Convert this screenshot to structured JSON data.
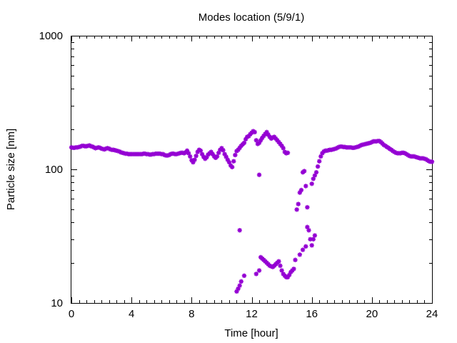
{
  "chart_data": {
    "type": "scatter",
    "title": "Modes location (5/9/1)",
    "xlabel": "Time [hour]",
    "ylabel": "Particle size [nm]",
    "xlim": [
      0,
      24
    ],
    "ylim": [
      10,
      1000
    ],
    "yscale": "log",
    "grid": false,
    "legend": "none",
    "marker_color": "#9400d3",
    "x_ticks": [
      0,
      4,
      8,
      12,
      16,
      20,
      24
    ],
    "x_tick_labels": [
      "0",
      "4",
      "8",
      "12",
      "16",
      "20",
      "24"
    ],
    "y_ticks": [
      10,
      100,
      1000
    ],
    "y_tick_labels": [
      "10",
      "100",
      "1000"
    ],
    "series": [
      {
        "points": [
          [
            0.0,
            146
          ],
          [
            0.1,
            145
          ],
          [
            0.2,
            145
          ],
          [
            0.3,
            146
          ],
          [
            0.4,
            146
          ],
          [
            0.5,
            147
          ],
          [
            0.6,
            148
          ],
          [
            0.7,
            150
          ],
          [
            0.8,
            150
          ],
          [
            0.9,
            149
          ],
          [
            1.0,
            149
          ],
          [
            1.1,
            150
          ],
          [
            1.2,
            151
          ],
          [
            1.3,
            149
          ],
          [
            1.4,
            148
          ],
          [
            1.5,
            146
          ],
          [
            1.6,
            144
          ],
          [
            1.7,
            145
          ],
          [
            1.8,
            146
          ],
          [
            1.9,
            145
          ],
          [
            2.0,
            143
          ],
          [
            2.1,
            142
          ],
          [
            2.2,
            141
          ],
          [
            2.3,
            143
          ],
          [
            2.4,
            144
          ],
          [
            2.5,
            143
          ],
          [
            2.6,
            141
          ],
          [
            2.7,
            140
          ],
          [
            2.8,
            140
          ],
          [
            2.9,
            139
          ],
          [
            3.0,
            138
          ],
          [
            3.1,
            137
          ],
          [
            3.2,
            136
          ],
          [
            3.3,
            134
          ],
          [
            3.4,
            133
          ],
          [
            3.5,
            132
          ],
          [
            3.6,
            131
          ],
          [
            3.7,
            131
          ],
          [
            3.8,
            130
          ],
          [
            3.9,
            130
          ],
          [
            4.0,
            130
          ],
          [
            4.1,
            130
          ],
          [
            4.2,
            130
          ],
          [
            4.3,
            130
          ],
          [
            4.4,
            130
          ],
          [
            4.5,
            130
          ],
          [
            4.6,
            130
          ],
          [
            4.7,
            130
          ],
          [
            4.8,
            131
          ],
          [
            4.9,
            131
          ],
          [
            5.0,
            130
          ],
          [
            5.1,
            130
          ],
          [
            5.2,
            129
          ],
          [
            5.3,
            129
          ],
          [
            5.4,
            130
          ],
          [
            5.5,
            130
          ],
          [
            5.6,
            131
          ],
          [
            5.7,
            131
          ],
          [
            5.8,
            131
          ],
          [
            5.9,
            131
          ],
          [
            6.0,
            130
          ],
          [
            6.1,
            130
          ],
          [
            6.2,
            128
          ],
          [
            6.3,
            127
          ],
          [
            6.4,
            127
          ],
          [
            6.5,
            128
          ],
          [
            6.6,
            130
          ],
          [
            6.7,
            131
          ],
          [
            6.8,
            131
          ],
          [
            6.9,
            130
          ],
          [
            7.0,
            130
          ],
          [
            7.1,
            131
          ],
          [
            7.2,
            132
          ],
          [
            7.3,
            133
          ],
          [
            7.4,
            133
          ],
          [
            7.5,
            132
          ],
          [
            7.6,
            134
          ],
          [
            7.7,
            138
          ],
          [
            7.8,
            132
          ],
          [
            7.9,
            125
          ],
          [
            8.0,
            117
          ],
          [
            8.1,
            113
          ],
          [
            8.2,
            118
          ],
          [
            8.3,
            126
          ],
          [
            8.4,
            135
          ],
          [
            8.5,
            140
          ],
          [
            8.6,
            138
          ],
          [
            8.7,
            130
          ],
          [
            8.8,
            124
          ],
          [
            8.9,
            120
          ],
          [
            9.0,
            123
          ],
          [
            9.1,
            129
          ],
          [
            9.2,
            132
          ],
          [
            9.3,
            135
          ],
          [
            9.4,
            130
          ],
          [
            9.5,
            125
          ],
          [
            9.6,
            122
          ],
          [
            9.7,
            125
          ],
          [
            9.8,
            133
          ],
          [
            9.9,
            140
          ],
          [
            10.0,
            144
          ],
          [
            10.1,
            139
          ],
          [
            10.2,
            130
          ],
          [
            10.3,
            124
          ],
          [
            10.4,
            118
          ],
          [
            10.5,
            113
          ],
          [
            10.6,
            107
          ],
          [
            10.7,
            104
          ],
          [
            10.8,
            115
          ],
          [
            10.9,
            128
          ],
          [
            11.0,
            137
          ],
          [
            11.1,
            140
          ],
          [
            11.2,
            145
          ],
          [
            11.3,
            150
          ],
          [
            11.4,
            154
          ],
          [
            11.5,
            158
          ],
          [
            11.6,
            168
          ],
          [
            11.7,
            175
          ],
          [
            11.8,
            177
          ],
          [
            11.9,
            183
          ],
          [
            12.0,
            188
          ],
          [
            12.1,
            193
          ],
          [
            12.2,
            190
          ],
          [
            12.3,
            165
          ],
          [
            12.4,
            155
          ],
          [
            12.5,
            158
          ],
          [
            12.6,
            165
          ],
          [
            12.7,
            172
          ],
          [
            12.8,
            178
          ],
          [
            12.9,
            184
          ],
          [
            13.0,
            190
          ],
          [
            13.1,
            182
          ],
          [
            13.2,
            175
          ],
          [
            13.3,
            170
          ],
          [
            13.4,
            173
          ],
          [
            13.5,
            175
          ],
          [
            13.6,
            170
          ],
          [
            13.7,
            165
          ],
          [
            13.8,
            160
          ],
          [
            13.9,
            155
          ],
          [
            14.0,
            150
          ],
          [
            14.1,
            144
          ],
          [
            14.2,
            135
          ],
          [
            14.3,
            132
          ],
          [
            14.4,
            133
          ],
          [
            11.2,
            35
          ],
          [
            12.5,
            91
          ],
          [
            11.0,
            12.2
          ],
          [
            11.1,
            12.8
          ],
          [
            11.2,
            13.5
          ],
          [
            11.3,
            14.5
          ],
          [
            11.5,
            16.0
          ],
          [
            12.3,
            16.5
          ],
          [
            12.5,
            17.5
          ],
          [
            12.6,
            22.0
          ],
          [
            12.7,
            21.5
          ],
          [
            12.8,
            21.0
          ],
          [
            12.9,
            20.5
          ],
          [
            13.0,
            20.0
          ],
          [
            13.1,
            19.5
          ],
          [
            13.2,
            19.0
          ],
          [
            13.3,
            18.8
          ],
          [
            13.4,
            18.6
          ],
          [
            13.5,
            19.0
          ],
          [
            13.6,
            19.5
          ],
          [
            13.7,
            20.0
          ],
          [
            13.8,
            20.5
          ],
          [
            13.9,
            19.0
          ],
          [
            14.0,
            17.5
          ],
          [
            14.1,
            16.5
          ],
          [
            14.2,
            16.0
          ],
          [
            14.3,
            15.6
          ],
          [
            14.4,
            15.6
          ],
          [
            14.5,
            16.2
          ],
          [
            14.6,
            17.0
          ],
          [
            14.7,
            17.5
          ],
          [
            14.8,
            18.0
          ],
          [
            14.9,
            21.0
          ],
          [
            15.0,
            50
          ],
          [
            15.1,
            55
          ],
          [
            15.2,
            67
          ],
          [
            15.3,
            70
          ],
          [
            15.4,
            95
          ],
          [
            15.5,
            97
          ],
          [
            15.6,
            75
          ],
          [
            15.7,
            52
          ],
          [
            15.2,
            23.0
          ],
          [
            15.4,
            25.0
          ],
          [
            15.6,
            26.5
          ],
          [
            15.7,
            37.0
          ],
          [
            15.8,
            35.0
          ],
          [
            15.9,
            30.0
          ],
          [
            16.0,
            27.0
          ],
          [
            16.1,
            30.0
          ],
          [
            16.2,
            32.0
          ],
          [
            16.0,
            78
          ],
          [
            16.1,
            85
          ],
          [
            16.2,
            90
          ],
          [
            16.3,
            95
          ],
          [
            16.4,
            105
          ],
          [
            16.5,
            115
          ],
          [
            16.6,
            125
          ],
          [
            16.7,
            132
          ],
          [
            16.8,
            136
          ],
          [
            16.9,
            138
          ],
          [
            17.0,
            138
          ],
          [
            17.1,
            139
          ],
          [
            17.2,
            140
          ],
          [
            17.3,
            140
          ],
          [
            17.4,
            141
          ],
          [
            17.5,
            142
          ],
          [
            17.6,
            143
          ],
          [
            17.7,
            145
          ],
          [
            17.8,
            147
          ],
          [
            17.9,
            148
          ],
          [
            18.0,
            148
          ],
          [
            18.1,
            147
          ],
          [
            18.2,
            147
          ],
          [
            18.3,
            146
          ],
          [
            18.4,
            146
          ],
          [
            18.5,
            146
          ],
          [
            18.6,
            146
          ],
          [
            18.7,
            145
          ],
          [
            18.8,
            145
          ],
          [
            18.9,
            146
          ],
          [
            19.0,
            147
          ],
          [
            19.1,
            148
          ],
          [
            19.2,
            150
          ],
          [
            19.3,
            152
          ],
          [
            19.4,
            153
          ],
          [
            19.5,
            154
          ],
          [
            19.6,
            155
          ],
          [
            19.7,
            156
          ],
          [
            19.8,
            157
          ],
          [
            19.9,
            158
          ],
          [
            20.0,
            160
          ],
          [
            20.1,
            162
          ],
          [
            20.2,
            162
          ],
          [
            20.3,
            162
          ],
          [
            20.4,
            163
          ],
          [
            20.5,
            163
          ],
          [
            20.6,
            160
          ],
          [
            20.7,
            156
          ],
          [
            20.8,
            152
          ],
          [
            20.9,
            150
          ],
          [
            21.0,
            147
          ],
          [
            21.1,
            145
          ],
          [
            21.2,
            142
          ],
          [
            21.3,
            140
          ],
          [
            21.4,
            137
          ],
          [
            21.5,
            135
          ],
          [
            21.6,
            133
          ],
          [
            21.7,
            132
          ],
          [
            21.8,
            132
          ],
          [
            21.9,
            132
          ],
          [
            22.0,
            133
          ],
          [
            22.1,
            133
          ],
          [
            22.2,
            132
          ],
          [
            22.3,
            130
          ],
          [
            22.4,
            128
          ],
          [
            22.5,
            126
          ],
          [
            22.6,
            125
          ],
          [
            22.7,
            125
          ],
          [
            22.8,
            125
          ],
          [
            22.9,
            124
          ],
          [
            23.0,
            123
          ],
          [
            23.1,
            122
          ],
          [
            23.2,
            121
          ],
          [
            23.3,
            121
          ],
          [
            23.4,
            121
          ],
          [
            23.5,
            120
          ],
          [
            23.6,
            119
          ],
          [
            23.7,
            117
          ],
          [
            23.8,
            115
          ],
          [
            23.9,
            114
          ],
          [
            24.0,
            114
          ]
        ]
      }
    ]
  }
}
